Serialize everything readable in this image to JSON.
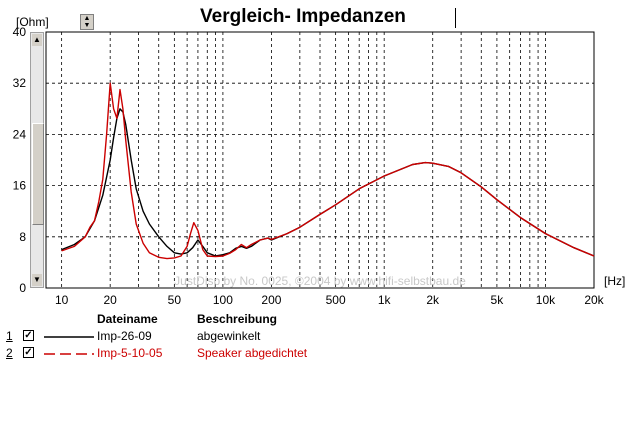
{
  "title": "Vergleich- Impedanzen",
  "y_unit": "[Ohm]",
  "x_unit": "[Hz]",
  "watermark": "JustDisp by No. 0025, ©2004 by www.hifi-selbstbau.de",
  "legend": {
    "header_name": "Dateiname",
    "header_desc": "Beschreibung",
    "rows": [
      {
        "index": "1",
        "checked": true,
        "name": "Imp-26-09",
        "description": "abgewinkelt",
        "color": "#000000",
        "dash": "solid"
      },
      {
        "index": "2",
        "checked": true,
        "name": "Imp-5-10-05",
        "description": "Speaker abgedichtet",
        "color": "#cc0000",
        "dash": "dashed"
      }
    ]
  },
  "chart_data": {
    "type": "line",
    "x_scale": "log",
    "xlim": [
      8,
      20000
    ],
    "ylim": [
      0,
      40
    ],
    "ylabel": "[Ohm]",
    "xlabel": "[Hz]",
    "x_ticks": [
      10,
      20,
      50,
      100,
      200,
      500,
      1000,
      2000,
      5000,
      10000,
      20000
    ],
    "x_tick_labels": [
      "10",
      "20",
      "50",
      "100",
      "200",
      "500",
      "1k",
      "2k",
      "5k",
      "10k",
      "20k"
    ],
    "y_ticks": [
      0,
      8,
      16,
      24,
      32,
      40
    ],
    "grid": true,
    "series": [
      {
        "name": "Imp-26-09",
        "color": "#000000",
        "x": [
          10,
          12,
          14,
          16,
          18,
          20,
          21,
          22,
          23,
          24,
          25,
          27,
          29,
          32,
          35,
          40,
          45,
          50,
          55,
          60,
          65,
          70,
          75,
          80,
          90,
          100,
          110,
          120,
          130,
          140,
          150,
          170,
          190,
          200,
          250,
          300,
          400,
          500,
          700,
          1000,
          1500,
          1800,
          2000,
          2500,
          3000,
          4000,
          5000,
          7000,
          10000,
          15000,
          20000
        ],
        "y": [
          6.0,
          6.8,
          8.0,
          10.5,
          14.5,
          20.0,
          23.5,
          26.5,
          28.0,
          27.5,
          25.5,
          20.0,
          15.5,
          12.0,
          10.0,
          8.0,
          6.5,
          5.5,
          5.3,
          5.5,
          6.3,
          7.5,
          6.5,
          5.5,
          5.0,
          5.2,
          5.5,
          6.2,
          6.5,
          6.2,
          6.5,
          7.5,
          7.8,
          7.5,
          8.5,
          9.5,
          11.5,
          13.0,
          15.5,
          17.5,
          19.3,
          19.6,
          19.5,
          19.0,
          18.0,
          15.8,
          13.8,
          11.0,
          8.5,
          6.3,
          5.0
        ]
      },
      {
        "name": "Imp-5-10-05",
        "color": "#cc0000",
        "x": [
          10,
          12,
          14,
          15,
          16,
          17,
          18,
          19,
          20,
          21,
          22,
          23,
          24,
          25,
          27,
          29,
          32,
          35,
          40,
          45,
          50,
          55,
          60,
          63,
          66,
          70,
          75,
          80,
          90,
          100,
          110,
          120,
          130,
          140,
          150,
          170,
          190,
          200,
          250,
          300,
          400,
          500,
          700,
          1000,
          1500,
          1800,
          2000,
          2500,
          3000,
          4000,
          5000,
          7000,
          10000,
          15000,
          20000
        ],
        "y": [
          5.8,
          6.5,
          8.0,
          9.5,
          10.5,
          13.5,
          17.0,
          24.0,
          32.0,
          28.0,
          26.5,
          31.0,
          28.0,
          23.0,
          15.0,
          10.0,
          7.0,
          5.5,
          4.8,
          4.6,
          4.7,
          5.0,
          6.5,
          8.5,
          10.2,
          9.0,
          6.0,
          5.0,
          4.9,
          5.0,
          5.4,
          6.0,
          6.8,
          6.3,
          6.8,
          7.5,
          7.8,
          7.6,
          8.5,
          9.5,
          11.5,
          13.0,
          15.5,
          17.5,
          19.3,
          19.6,
          19.5,
          19.0,
          18.0,
          15.8,
          13.8,
          11.0,
          8.5,
          6.3,
          5.0
        ]
      }
    ]
  }
}
